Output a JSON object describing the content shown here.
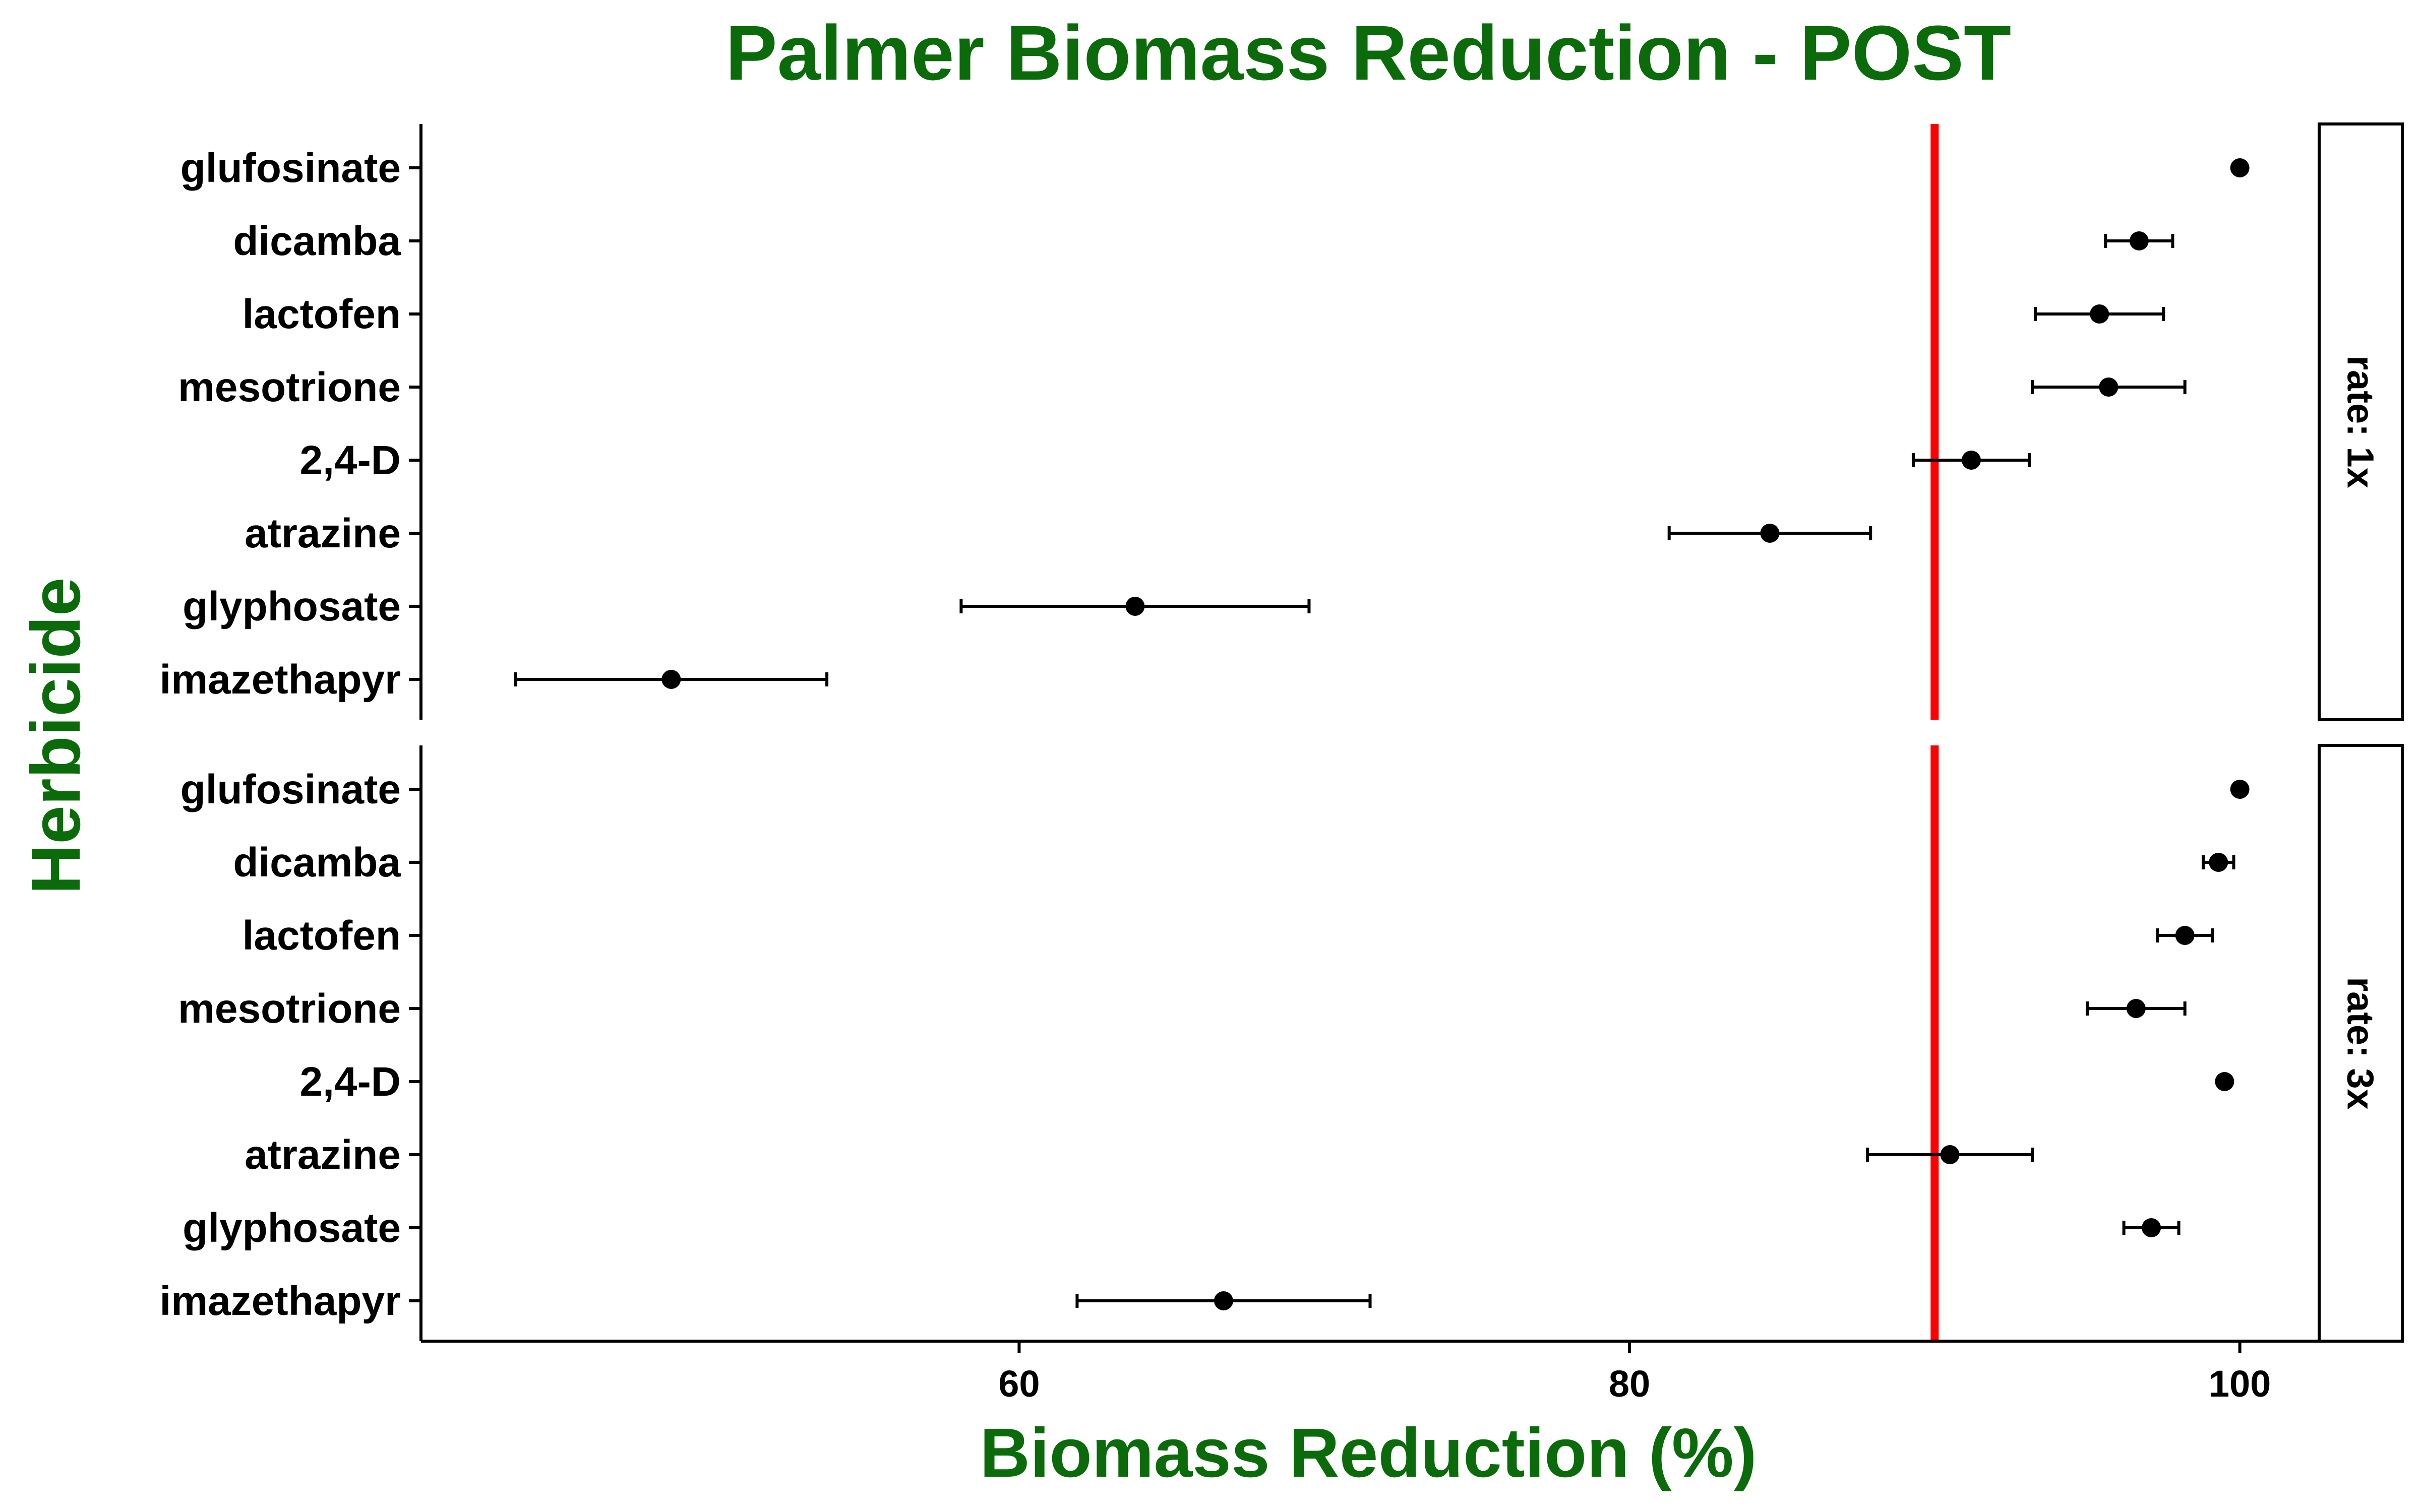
{
  "chart_data": {
    "type": "scatter",
    "title": "Palmer Biomass Reduction - POST",
    "xlabel": "Biomass Reduction (%)",
    "ylabel": "Herbicide",
    "xlim": [
      40.4,
      102.6
    ],
    "xticks": [
      60,
      80,
      100
    ],
    "reference_line": {
      "x": 90,
      "color": "#ff0000"
    },
    "categories": [
      "glufosinate",
      "dicamba",
      "lactofen",
      "mesotrione",
      "2,4-D",
      "atrazine",
      "glyphosate",
      "imazethapyr"
    ],
    "facets": [
      {
        "label": "rate: 1x",
        "points": [
          {
            "herbicide": "glufosinate",
            "value": 100.0,
            "lower": 100.0,
            "upper": 100.0
          },
          {
            "herbicide": "dicamba",
            "value": 96.7,
            "lower": 95.6,
            "upper": 97.8
          },
          {
            "herbicide": "lactofen",
            "value": 95.4,
            "lower": 93.3,
            "upper": 97.5
          },
          {
            "herbicide": "mesotrione",
            "value": 95.7,
            "lower": 93.2,
            "upper": 98.2
          },
          {
            "herbicide": "2,4-D",
            "value": 91.2,
            "lower": 89.3,
            "upper": 93.1
          },
          {
            "herbicide": "atrazine",
            "value": 84.6,
            "lower": 81.3,
            "upper": 87.9
          },
          {
            "herbicide": "glyphosate",
            "value": 63.8,
            "lower": 58.1,
            "upper": 69.5
          },
          {
            "herbicide": "imazethapyr",
            "value": 48.6,
            "lower": 43.5,
            "upper": 53.7
          }
        ]
      },
      {
        "label": "rate: 3x",
        "points": [
          {
            "herbicide": "glufosinate",
            "value": 100.0,
            "lower": 100.0,
            "upper": 100.0
          },
          {
            "herbicide": "dicamba",
            "value": 99.3,
            "lower": 98.8,
            "upper": 99.8
          },
          {
            "herbicide": "lactofen",
            "value": 98.2,
            "lower": 97.3,
            "upper": 99.1
          },
          {
            "herbicide": "mesotrione",
            "value": 96.6,
            "lower": 95.0,
            "upper": 98.2
          },
          {
            "herbicide": "2,4-D",
            "value": 99.5,
            "lower": 99.5,
            "upper": 99.5
          },
          {
            "herbicide": "atrazine",
            "value": 90.5,
            "lower": 87.8,
            "upper": 93.2
          },
          {
            "herbicide": "glyphosate",
            "value": 97.1,
            "lower": 96.2,
            "upper": 98.0
          },
          {
            "herbicide": "imazethapyr",
            "value": 66.7,
            "lower": 61.9,
            "upper": 71.5
          }
        ]
      }
    ]
  }
}
